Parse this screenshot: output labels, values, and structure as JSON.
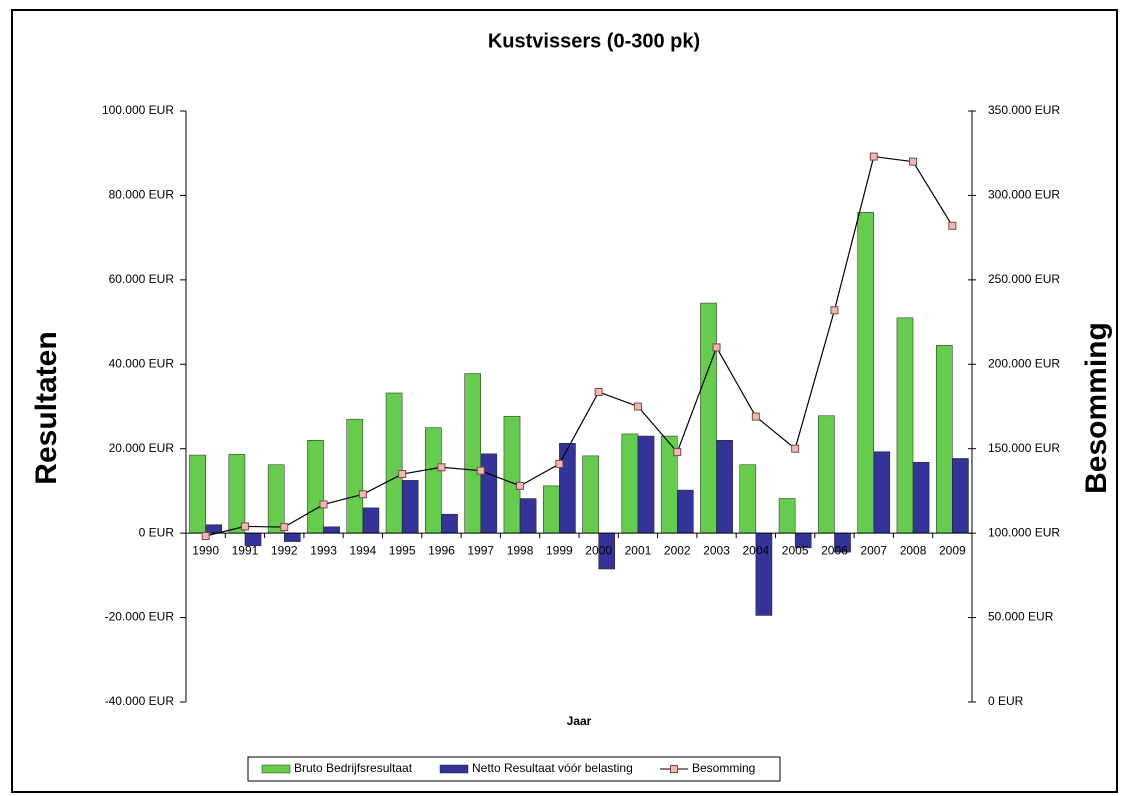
{
  "chart_data": {
    "type": "bar",
    "title": "Kustvissers (0-300 pk)",
    "x_label": "Jaar",
    "y_label": "Resultaten",
    "y2_label": "Besomming",
    "categories": [
      "1990",
      "1991",
      "1992",
      "1993",
      "1994",
      "1995",
      "1996",
      "1997",
      "1998",
      "1999",
      "2000",
      "2001",
      "2002",
      "2003",
      "2004",
      "2005",
      "2006",
      "2007",
      "2008",
      "2009"
    ],
    "series": [
      {
        "name": "Bruto Bedrijfsresultaat",
        "type": "bar",
        "color": "#66cc4d",
        "values": [
          18500,
          18700,
          16200,
          22000,
          27000,
          33200,
          25000,
          37800,
          27700,
          11200,
          18300,
          23500,
          23000,
          54500,
          16200,
          8200,
          27800,
          76000,
          51000,
          44500
        ]
      },
      {
        "name": "Netto Resultaat vóór belasting",
        "type": "bar",
        "color": "#333399",
        "values": [
          2000,
          -3000,
          -2000,
          1500,
          6000,
          12500,
          4500,
          18800,
          8200,
          21300,
          -8500,
          23000,
          10200,
          22000,
          -19500,
          -3500,
          -4500,
          19300,
          16800,
          17700
        ]
      },
      {
        "name": "Besomming",
        "type": "line",
        "axis": "y2",
        "color": "#000000",
        "marker_color": "#f4b5b5",
        "values": [
          98300,
          104000,
          103600,
          117000,
          123000,
          135000,
          139000,
          137000,
          128000,
          141000,
          183600,
          175000,
          148000,
          210000,
          169000,
          150000,
          232000,
          323000,
          320000,
          282000
        ]
      }
    ],
    "ylim": [
      -40000,
      100000
    ],
    "yticks": [
      {
        "value": -40000,
        "label": "-40.000 EUR"
      },
      {
        "value": -20000,
        "label": "-20.000 EUR"
      },
      {
        "value": 0,
        "label": "0 EUR"
      },
      {
        "value": 20000,
        "label": "20.000 EUR"
      },
      {
        "value": 40000,
        "label": "40.000 EUR"
      },
      {
        "value": 60000,
        "label": "60.000 EUR"
      },
      {
        "value": 80000,
        "label": "80.000 EUR"
      },
      {
        "value": 100000,
        "label": "100.000 EUR"
      }
    ],
    "y2lim": [
      0,
      350000
    ],
    "y2ticks": [
      {
        "value": 0,
        "label": "0 EUR"
      },
      {
        "value": 50000,
        "label": "50.000 EUR"
      },
      {
        "value": 100000,
        "label": "100.000 EUR"
      },
      {
        "value": 150000,
        "label": "150.000 EUR"
      },
      {
        "value": 200000,
        "label": "200.000 EUR"
      },
      {
        "value": 250000,
        "label": "250.000 EUR"
      },
      {
        "value": 300000,
        "label": "300.000 EUR"
      },
      {
        "value": 350000,
        "label": "350.000 EUR"
      }
    ],
    "grid": false,
    "legend": "bottom"
  }
}
